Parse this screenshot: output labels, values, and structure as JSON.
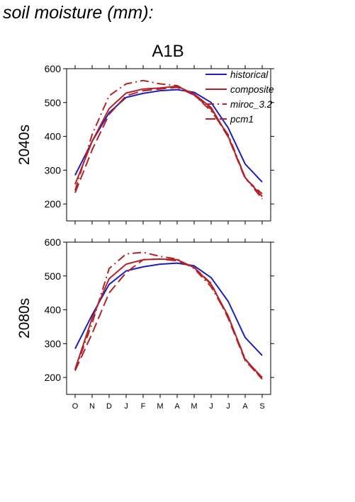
{
  "page_title": "soil moisture (mm):",
  "scenario": "A1B",
  "colors": {
    "historical": "#1c1fbf",
    "future": "#b22226"
  },
  "chart_data": [
    {
      "type": "line",
      "row_label": "2040s",
      "categories": [
        "O",
        "N",
        "D",
        "J",
        "F",
        "M",
        "A",
        "M",
        "J",
        "J",
        "A",
        "S"
      ],
      "ylim": [
        150,
        600
      ],
      "yticks": [
        200,
        300,
        400,
        500,
        600
      ],
      "legend_position": "top-right",
      "series": [
        {
          "name": "historical",
          "style": "solid",
          "color": "#1c1fbf",
          "values": [
            285,
            385,
            470,
            515,
            527,
            535,
            538,
            530,
            500,
            425,
            318,
            265
          ]
        },
        {
          "name": "composite",
          "style": "solid",
          "color": "#b22226",
          "values": [
            258,
            385,
            482,
            528,
            540,
            543,
            548,
            525,
            485,
            400,
            278,
            222
          ]
        },
        {
          "name": "miroc_3.2",
          "style": "dashdot",
          "color": "#b22226",
          "values": [
            240,
            405,
            520,
            555,
            565,
            555,
            550,
            522,
            475,
            405,
            278,
            215
          ]
        },
        {
          "name": "pcm1",
          "style": "dash",
          "color": "#b22226",
          "values": [
            233,
            360,
            465,
            520,
            535,
            540,
            545,
            522,
            480,
            398,
            275,
            230
          ]
        }
      ]
    },
    {
      "type": "line",
      "row_label": "2080s",
      "categories": [
        "O",
        "N",
        "D",
        "J",
        "F",
        "M",
        "A",
        "M",
        "J",
        "J",
        "A",
        "S"
      ],
      "ylim": [
        150,
        600
      ],
      "yticks": [
        200,
        300,
        400,
        500,
        600
      ],
      "series": [
        {
          "name": "historical",
          "style": "solid",
          "color": "#1c1fbf",
          "values": [
            285,
            385,
            475,
            515,
            527,
            535,
            538,
            530,
            495,
            425,
            318,
            265
          ]
        },
        {
          "name": "composite",
          "style": "solid",
          "color": "#b22226",
          "values": [
            225,
            375,
            492,
            535,
            548,
            550,
            548,
            525,
            475,
            382,
            253,
            200
          ]
        },
        {
          "name": "miroc_3.2",
          "style": "dashdot",
          "color": "#b22226",
          "values": [
            222,
            360,
            522,
            565,
            570,
            558,
            550,
            522,
            468,
            380,
            255,
            195
          ]
        },
        {
          "name": "pcm1",
          "style": "dash",
          "color": "#b22226",
          "values": [
            220,
            330,
            450,
            510,
            548,
            550,
            545,
            525,
            478,
            375,
            250,
            195
          ]
        }
      ]
    }
  ]
}
